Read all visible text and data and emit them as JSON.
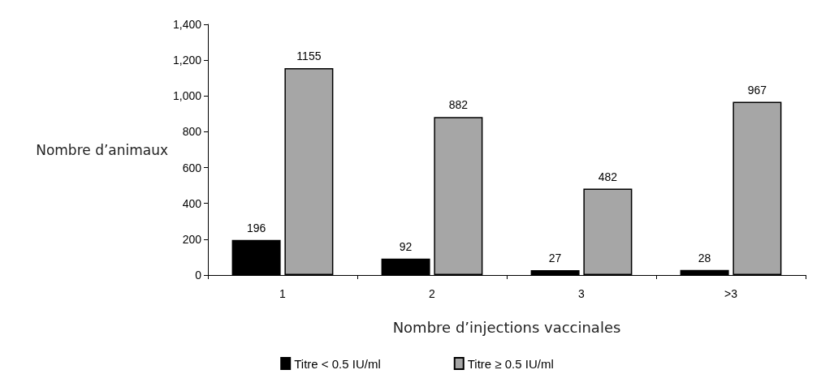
{
  "chart_data": {
    "type": "bar",
    "xlabel": "Nombre d’injections vaccinales",
    "ylabel": "Nombre d’animaux",
    "categories": [
      "1",
      "2",
      "3",
      ">3"
    ],
    "series": [
      {
        "name": "Titre < 0.5 IU/ml",
        "color": "#000000",
        "values": [
          196,
          92,
          27,
          28
        ]
      },
      {
        "name": "Titre ≥ 0.5 IU/ml",
        "color": "#a6a6a6",
        "values": [
          1155,
          882,
          482,
          967
        ]
      }
    ],
    "ylim": [
      0,
      1400
    ],
    "yticks": [
      0,
      200,
      400,
      600,
      800,
      {
        "value": 1000,
        "label": "1,000"
      },
      {
        "value": 1200,
        "label": "1,200"
      },
      {
        "value": 1400,
        "label": "1,400"
      }
    ],
    "data_labels": true,
    "grid": false,
    "legend": "bottom"
  }
}
